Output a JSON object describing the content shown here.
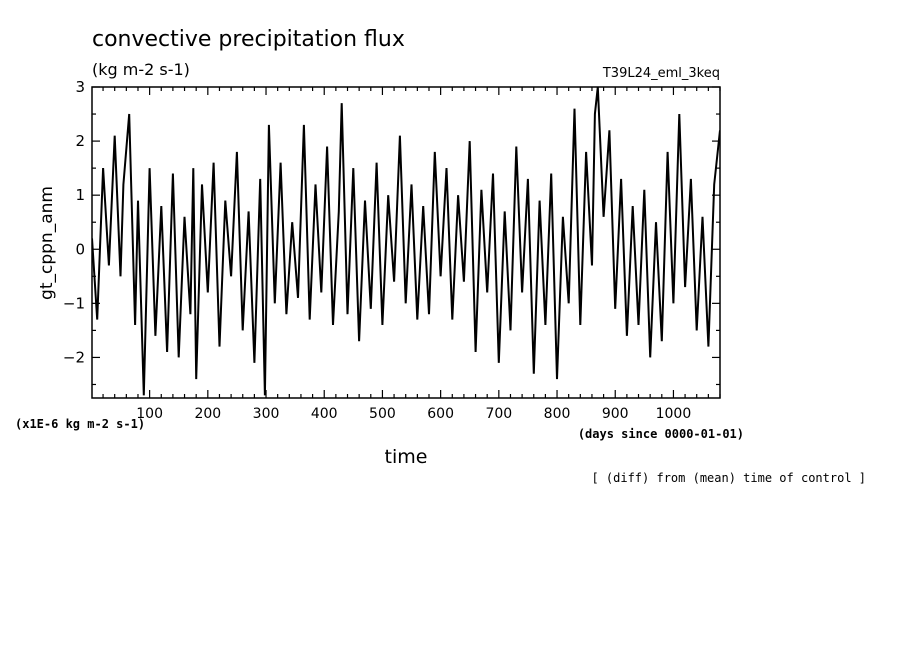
{
  "chart_data": {
    "type": "line",
    "title": "convective precipitation flux",
    "units": "(kg m-2 s-1)",
    "run_name": "T39L24_eml_3keq",
    "ylabel": "gt_cppn_anm",
    "ylabel_units": "(x1E-6 kg m-2 s-1)",
    "xlabel": "time",
    "xlabel_units": "(days since 0000-01-01)",
    "footnote": "[ (diff) from (mean) time of control ]",
    "xlim": [
      1,
      1080
    ],
    "ylim": [
      -2.75,
      3.0
    ],
    "xticks": [
      "100",
      "200",
      "300",
      "400",
      "500",
      "600",
      "700",
      "800",
      "900",
      "1000"
    ],
    "yticks": [
      "3",
      "2",
      "1",
      "0",
      "−1",
      "−2"
    ],
    "grid": false,
    "legend": "none",
    "line_color": "#000000",
    "series": [
      {
        "x": [
          1,
          10,
          20,
          30,
          40,
          50,
          55,
          65,
          75,
          80,
          90,
          100,
          110,
          120,
          130,
          140,
          150,
          160,
          170,
          175,
          180,
          190,
          200,
          210,
          220,
          230,
          240,
          250,
          260,
          270,
          280,
          290,
          298,
          305,
          315,
          325,
          335,
          345,
          355,
          365,
          375,
          385,
          395,
          405,
          415,
          425,
          430,
          440,
          450,
          460,
          470,
          480,
          490,
          500,
          510,
          520,
          530,
          540,
          550,
          560,
          570,
          580,
          590,
          600,
          610,
          620,
          630,
          640,
          650,
          660,
          670,
          680,
          690,
          700,
          710,
          720,
          730,
          740,
          750,
          760,
          770,
          780,
          790,
          800,
          810,
          820,
          830,
          840,
          850,
          860,
          865,
          870,
          880,
          890,
          900,
          910,
          920,
          930,
          940,
          950,
          960,
          970,
          980,
          990,
          1000,
          1010,
          1020,
          1030,
          1040,
          1050,
          1060,
          1070,
          1080
        ],
        "y": [
          0.2,
          -1.3,
          1.5,
          -0.3,
          2.1,
          -0.5,
          1.2,
          2.5,
          -1.4,
          0.9,
          -2.7,
          1.5,
          -1.6,
          0.8,
          -1.9,
          1.4,
          -2.0,
          0.6,
          -1.2,
          1.5,
          -2.4,
          1.2,
          -0.8,
          1.6,
          -1.8,
          0.9,
          -0.5,
          1.8,
          -1.5,
          0.7,
          -2.1,
          1.3,
          -2.7,
          2.3,
          -1.0,
          1.6,
          -1.2,
          0.5,
          -0.9,
          2.3,
          -1.3,
          1.2,
          -0.8,
          1.9,
          -1.4,
          0.7,
          2.7,
          -1.2,
          1.5,
          -1.7,
          0.9,
          -1.1,
          1.6,
          -1.4,
          1.0,
          -0.6,
          2.1,
          -1.0,
          1.2,
          -1.3,
          0.8,
          -1.2,
          1.8,
          -0.5,
          1.5,
          -1.3,
          1.0,
          -0.6,
          2.0,
          -1.9,
          1.1,
          -0.8,
          1.4,
          -2.1,
          0.7,
          -1.5,
          1.9,
          -0.8,
          1.3,
          -2.3,
          0.9,
          -1.4,
          1.4,
          -2.4,
          0.6,
          -1.0,
          2.6,
          -1.4,
          1.8,
          -0.3,
          2.5,
          3.0,
          0.6,
          2.2,
          -1.1,
          1.3,
          -1.6,
          0.8,
          -1.4,
          1.1,
          -2.0,
          0.5,
          -1.7,
          1.8,
          -1.0,
          2.5,
          -0.7,
          1.3,
          -1.5,
          0.6,
          -1.8,
          1.2,
          2.2
        ]
      }
    ]
  }
}
